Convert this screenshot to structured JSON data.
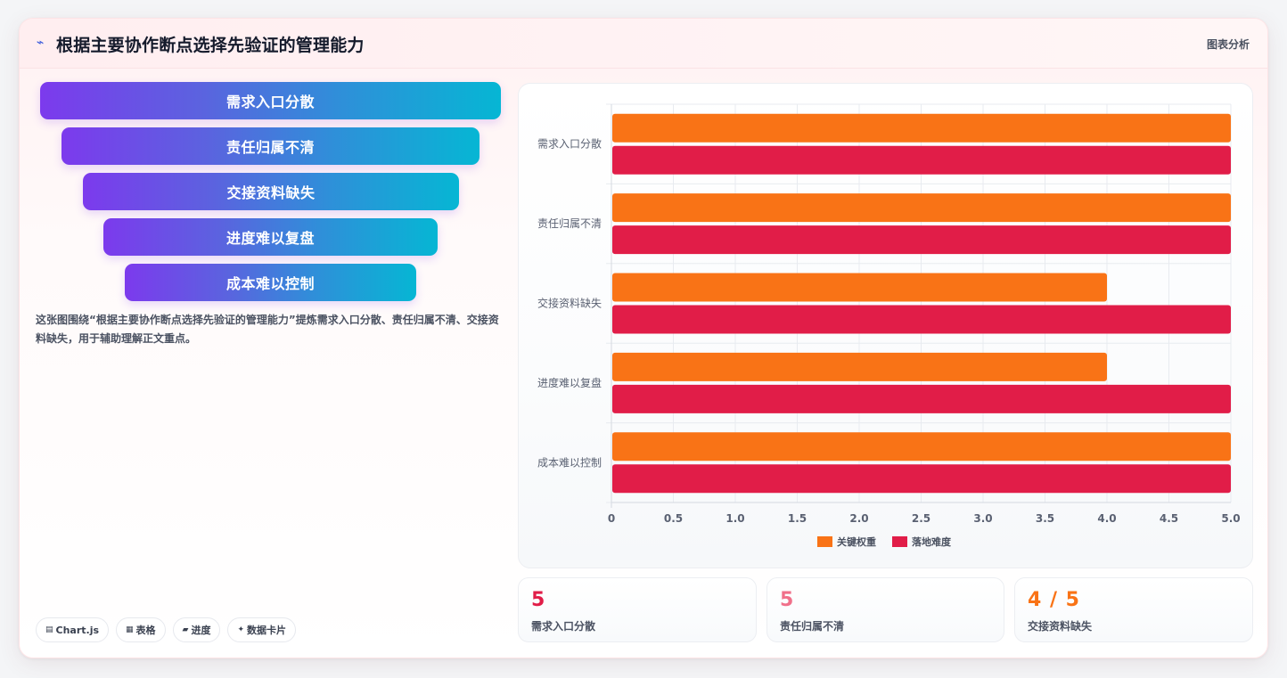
{
  "header": {
    "icon": "⌁",
    "title": "根据主要协作断点选择先验证的管理能力",
    "action_label": "图表分析"
  },
  "funnel": {
    "items": [
      {
        "label": "需求入口分散"
      },
      {
        "label": "责任归属不清"
      },
      {
        "label": "交接资料缺失"
      },
      {
        "label": "进度难以复盘"
      },
      {
        "label": "成本难以控制"
      }
    ]
  },
  "description": "这张图围绕“根据主要协作断点选择先验证的管理能力”提炼需求入口分散、责任归属不清、交接资料缺失，用于辅助理解正文重点。",
  "tags": [
    {
      "icon": "▤",
      "label": "Chart.js"
    },
    {
      "icon": "▦",
      "label": "表格"
    },
    {
      "icon": "▰",
      "label": "进度"
    },
    {
      "icon": "✦",
      "label": "数据卡片"
    }
  ],
  "chart_data": {
    "type": "bar",
    "orientation": "horizontal",
    "categories": [
      "需求入口分散",
      "责任归属不清",
      "交接资料缺失",
      "进度难以复盘",
      "成本难以控制"
    ],
    "series": [
      {
        "name": "关键权重",
        "values": [
          5,
          5,
          4,
          4,
          5
        ],
        "color": "#f97316"
      },
      {
        "name": "落地难度",
        "values": [
          5,
          5,
          5,
          5,
          5
        ],
        "color": "#e11d48"
      }
    ],
    "xlim": [
      0,
      5
    ],
    "x_ticks": [
      "0",
      "0.5",
      "1.0",
      "1.5",
      "2.0",
      "2.5",
      "3.0",
      "3.5",
      "4.0",
      "4.5",
      "5.0"
    ],
    "grid": true,
    "legend_position": "bottom"
  },
  "stats": [
    {
      "value": "5",
      "label": "需求入口分散",
      "color": "#e11d48"
    },
    {
      "value": "5",
      "label": "责任归属不清",
      "color": "#f0708a"
    },
    {
      "value": "4 / 5",
      "label": "交接资料缺失",
      "color": "#f97316"
    }
  ]
}
